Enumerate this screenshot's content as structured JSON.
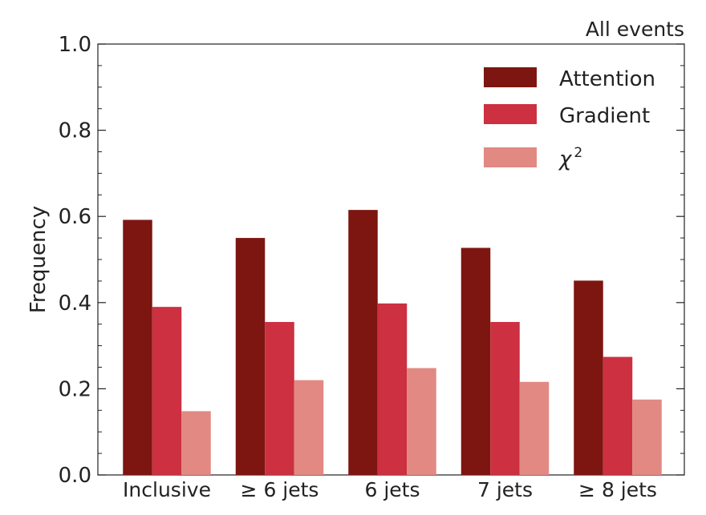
{
  "chart_data": {
    "type": "bar",
    "title": "All events",
    "xlabel": "",
    "ylabel": "Frequency",
    "ylim": [
      0,
      1.0
    ],
    "yticks": [
      "0.0",
      "0.2",
      "0.4",
      "0.6",
      "0.8",
      "1.0"
    ],
    "categories": [
      "Inclusive",
      "≥ 6 jets",
      "6 jets",
      "7 jets",
      "≥ 8 jets"
    ],
    "series": [
      {
        "name": "Attention",
        "color": "#7d1610",
        "values": [
          0.592,
          0.55,
          0.615,
          0.527,
          0.451
        ]
      },
      {
        "name": "Gradient",
        "color": "#cc3041",
        "values": [
          0.39,
          0.355,
          0.398,
          0.355,
          0.274
        ]
      },
      {
        "name": "χ",
        "name_superscript": "2",
        "color": "#e28983",
        "values": [
          0.148,
          0.22,
          0.248,
          0.216,
          0.175
        ]
      }
    ],
    "legend_position": "top-right",
    "grid": false
  }
}
